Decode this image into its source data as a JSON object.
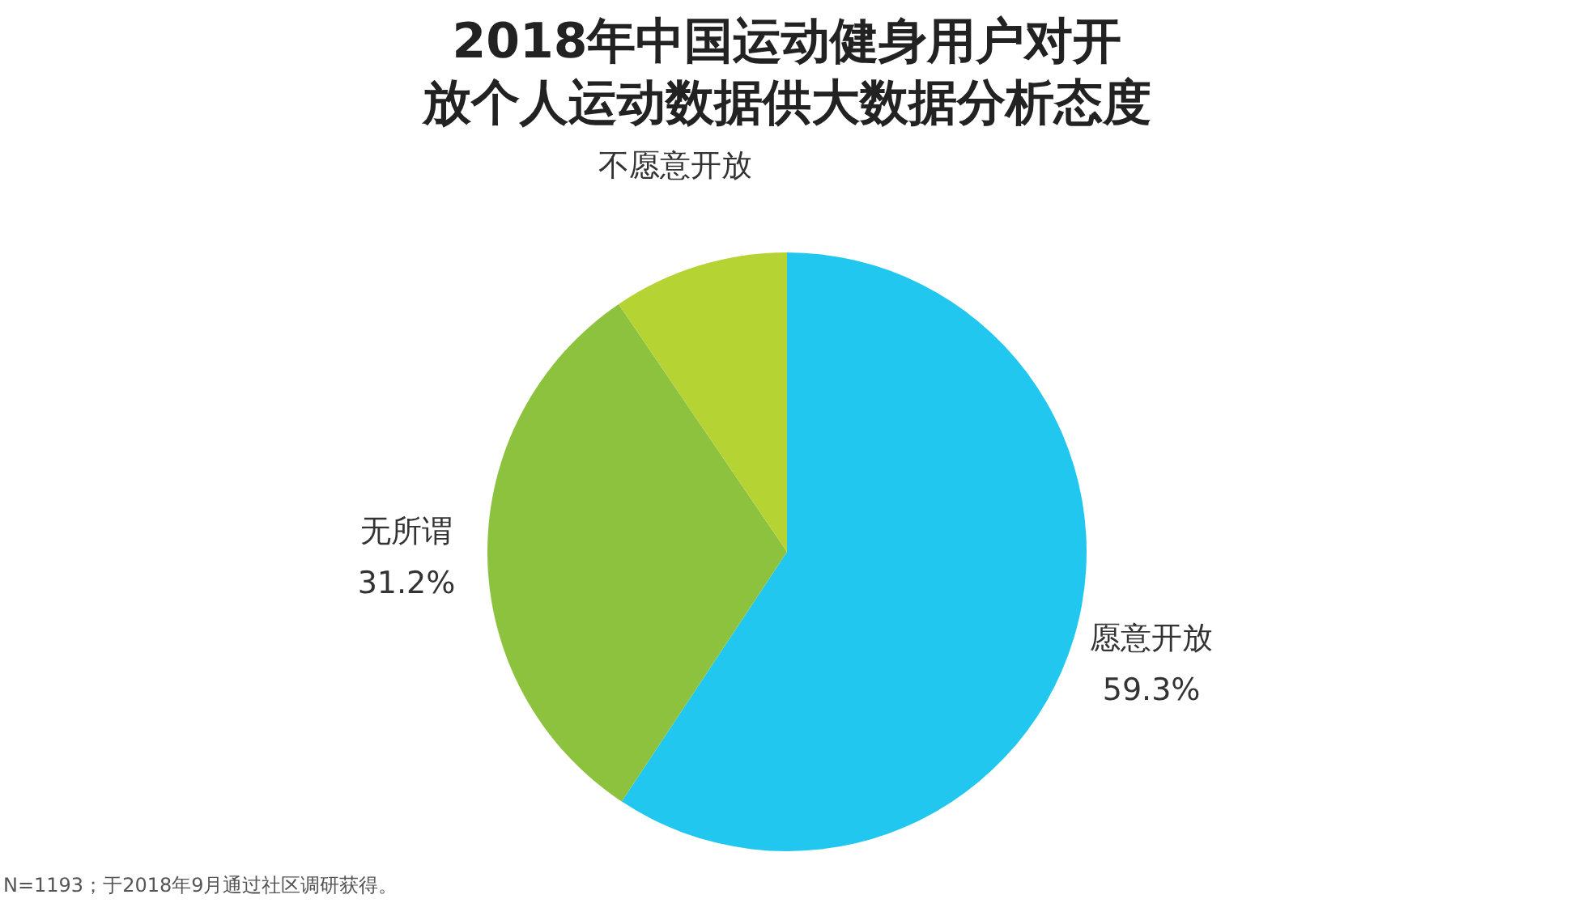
{
  "chart_data": {
    "type": "pie",
    "title": "2018年中国运动健身用户对开放个人运动数据供大数据分析态度",
    "categories": [
      "愿意开放",
      "无所谓",
      "不愿意开放"
    ],
    "values": [
      59.3,
      31.2,
      9.5
    ],
    "colors": [
      "#22c7f0",
      "#8dc23f",
      "#b6d334"
    ],
    "value_labels": [
      "59.3%",
      "31.2%",
      null
    ],
    "legend": false,
    "annotations": [
      "N=1193；于2018年9月通过社区调研获得。"
    ]
  }
}
